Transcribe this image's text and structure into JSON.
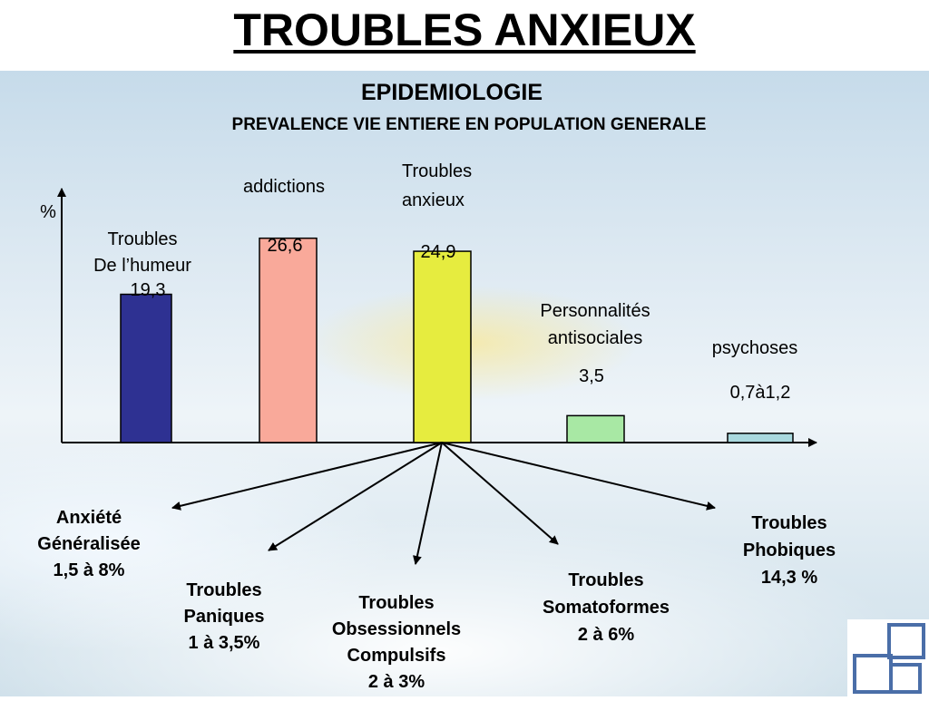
{
  "title": "TROUBLES ANXIEUX",
  "subtitle": "EPIDEMIOLOGIE",
  "subtitle2": "PREVALENCE VIE ENTIERE EN POPULATION GENERALE",
  "chart_data": {
    "type": "bar",
    "ylabel": "%",
    "ylim": [
      0,
      34
    ],
    "categories": [
      {
        "label": [
          "Troubles",
          "De l’humeur"
        ],
        "value_label": "19,3",
        "value": 19.3,
        "color": "#2e3192"
      },
      {
        "label": [
          "addictions"
        ],
        "value_label": "26,6",
        "value": 26.6,
        "color": "#f9a99a"
      },
      {
        "label": [
          "Troubles",
          "anxieux"
        ],
        "value_label": "24,9",
        "value": 24.9,
        "color": "#e6ec3f"
      },
      {
        "label": [
          "Personnalités",
          "antisociales"
        ],
        "value_label": "3,5",
        "value": 3.5,
        "color": "#a8e8a4"
      },
      {
        "label": [
          "psychoses"
        ],
        "value_label": "0,7à1,2",
        "value": 1.2,
        "color": "#a9d9de"
      }
    ],
    "breakdown": [
      {
        "lines": [
          "Anxiété",
          "Généralisée",
          "1,5 à 8%"
        ]
      },
      {
        "lines": [
          "Troubles",
          "Paniques",
          "1 à 3,5%"
        ]
      },
      {
        "lines": [
          "Troubles",
          "Obsessionnels",
          "Compulsifs",
          "2 à 3%"
        ]
      },
      {
        "lines": [
          "Troubles",
          "Somatoformes",
          "2 à 6%"
        ]
      },
      {
        "lines": [
          "Troubles",
          "Phobiques",
          "14,3 %"
        ]
      }
    ]
  }
}
